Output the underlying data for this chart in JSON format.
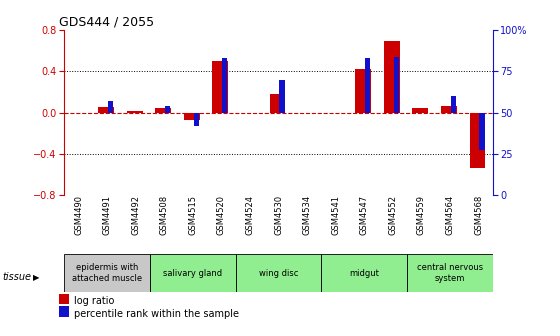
{
  "title": "GDS444 / 2055",
  "samples": [
    "GSM4490",
    "GSM4491",
    "GSM4492",
    "GSM4508",
    "GSM4515",
    "GSM4520",
    "GSM4524",
    "GSM4530",
    "GSM4534",
    "GSM4541",
    "GSM4547",
    "GSM4552",
    "GSM4559",
    "GSM4564",
    "GSM4568"
  ],
  "log_ratio": [
    0.0,
    0.05,
    0.02,
    0.04,
    -0.07,
    0.5,
    0.0,
    0.18,
    0.0,
    0.0,
    0.42,
    0.7,
    0.04,
    0.06,
    -0.54
  ],
  "percentile": [
    50,
    57,
    50,
    54,
    42,
    83,
    50,
    70,
    50,
    50,
    83,
    84,
    50,
    60,
    27
  ],
  "tissues": [
    {
      "label": "epidermis with\nattached muscle",
      "start": 0,
      "end": 2,
      "color": "#c8c8c8"
    },
    {
      "label": "salivary gland",
      "start": 3,
      "end": 5,
      "color": "#90ee90"
    },
    {
      "label": "wing disc",
      "start": 6,
      "end": 8,
      "color": "#90ee90"
    },
    {
      "label": "midgut",
      "start": 9,
      "end": 11,
      "color": "#90ee90"
    },
    {
      "label": "central nervous\nsystem",
      "start": 12,
      "end": 14,
      "color": "#90ee90"
    }
  ],
  "ylim": [
    -0.8,
    0.8
  ],
  "y2lim": [
    0,
    100
  ],
  "yticks_left": [
    -0.8,
    -0.4,
    0.0,
    0.4,
    0.8
  ],
  "yticks_right": [
    0,
    25,
    50,
    75,
    100
  ],
  "hlines": [
    -0.4,
    0.4
  ],
  "bar_color_red": "#cc0000",
  "bar_color_blue": "#1111cc",
  "bg": "#ffffff"
}
